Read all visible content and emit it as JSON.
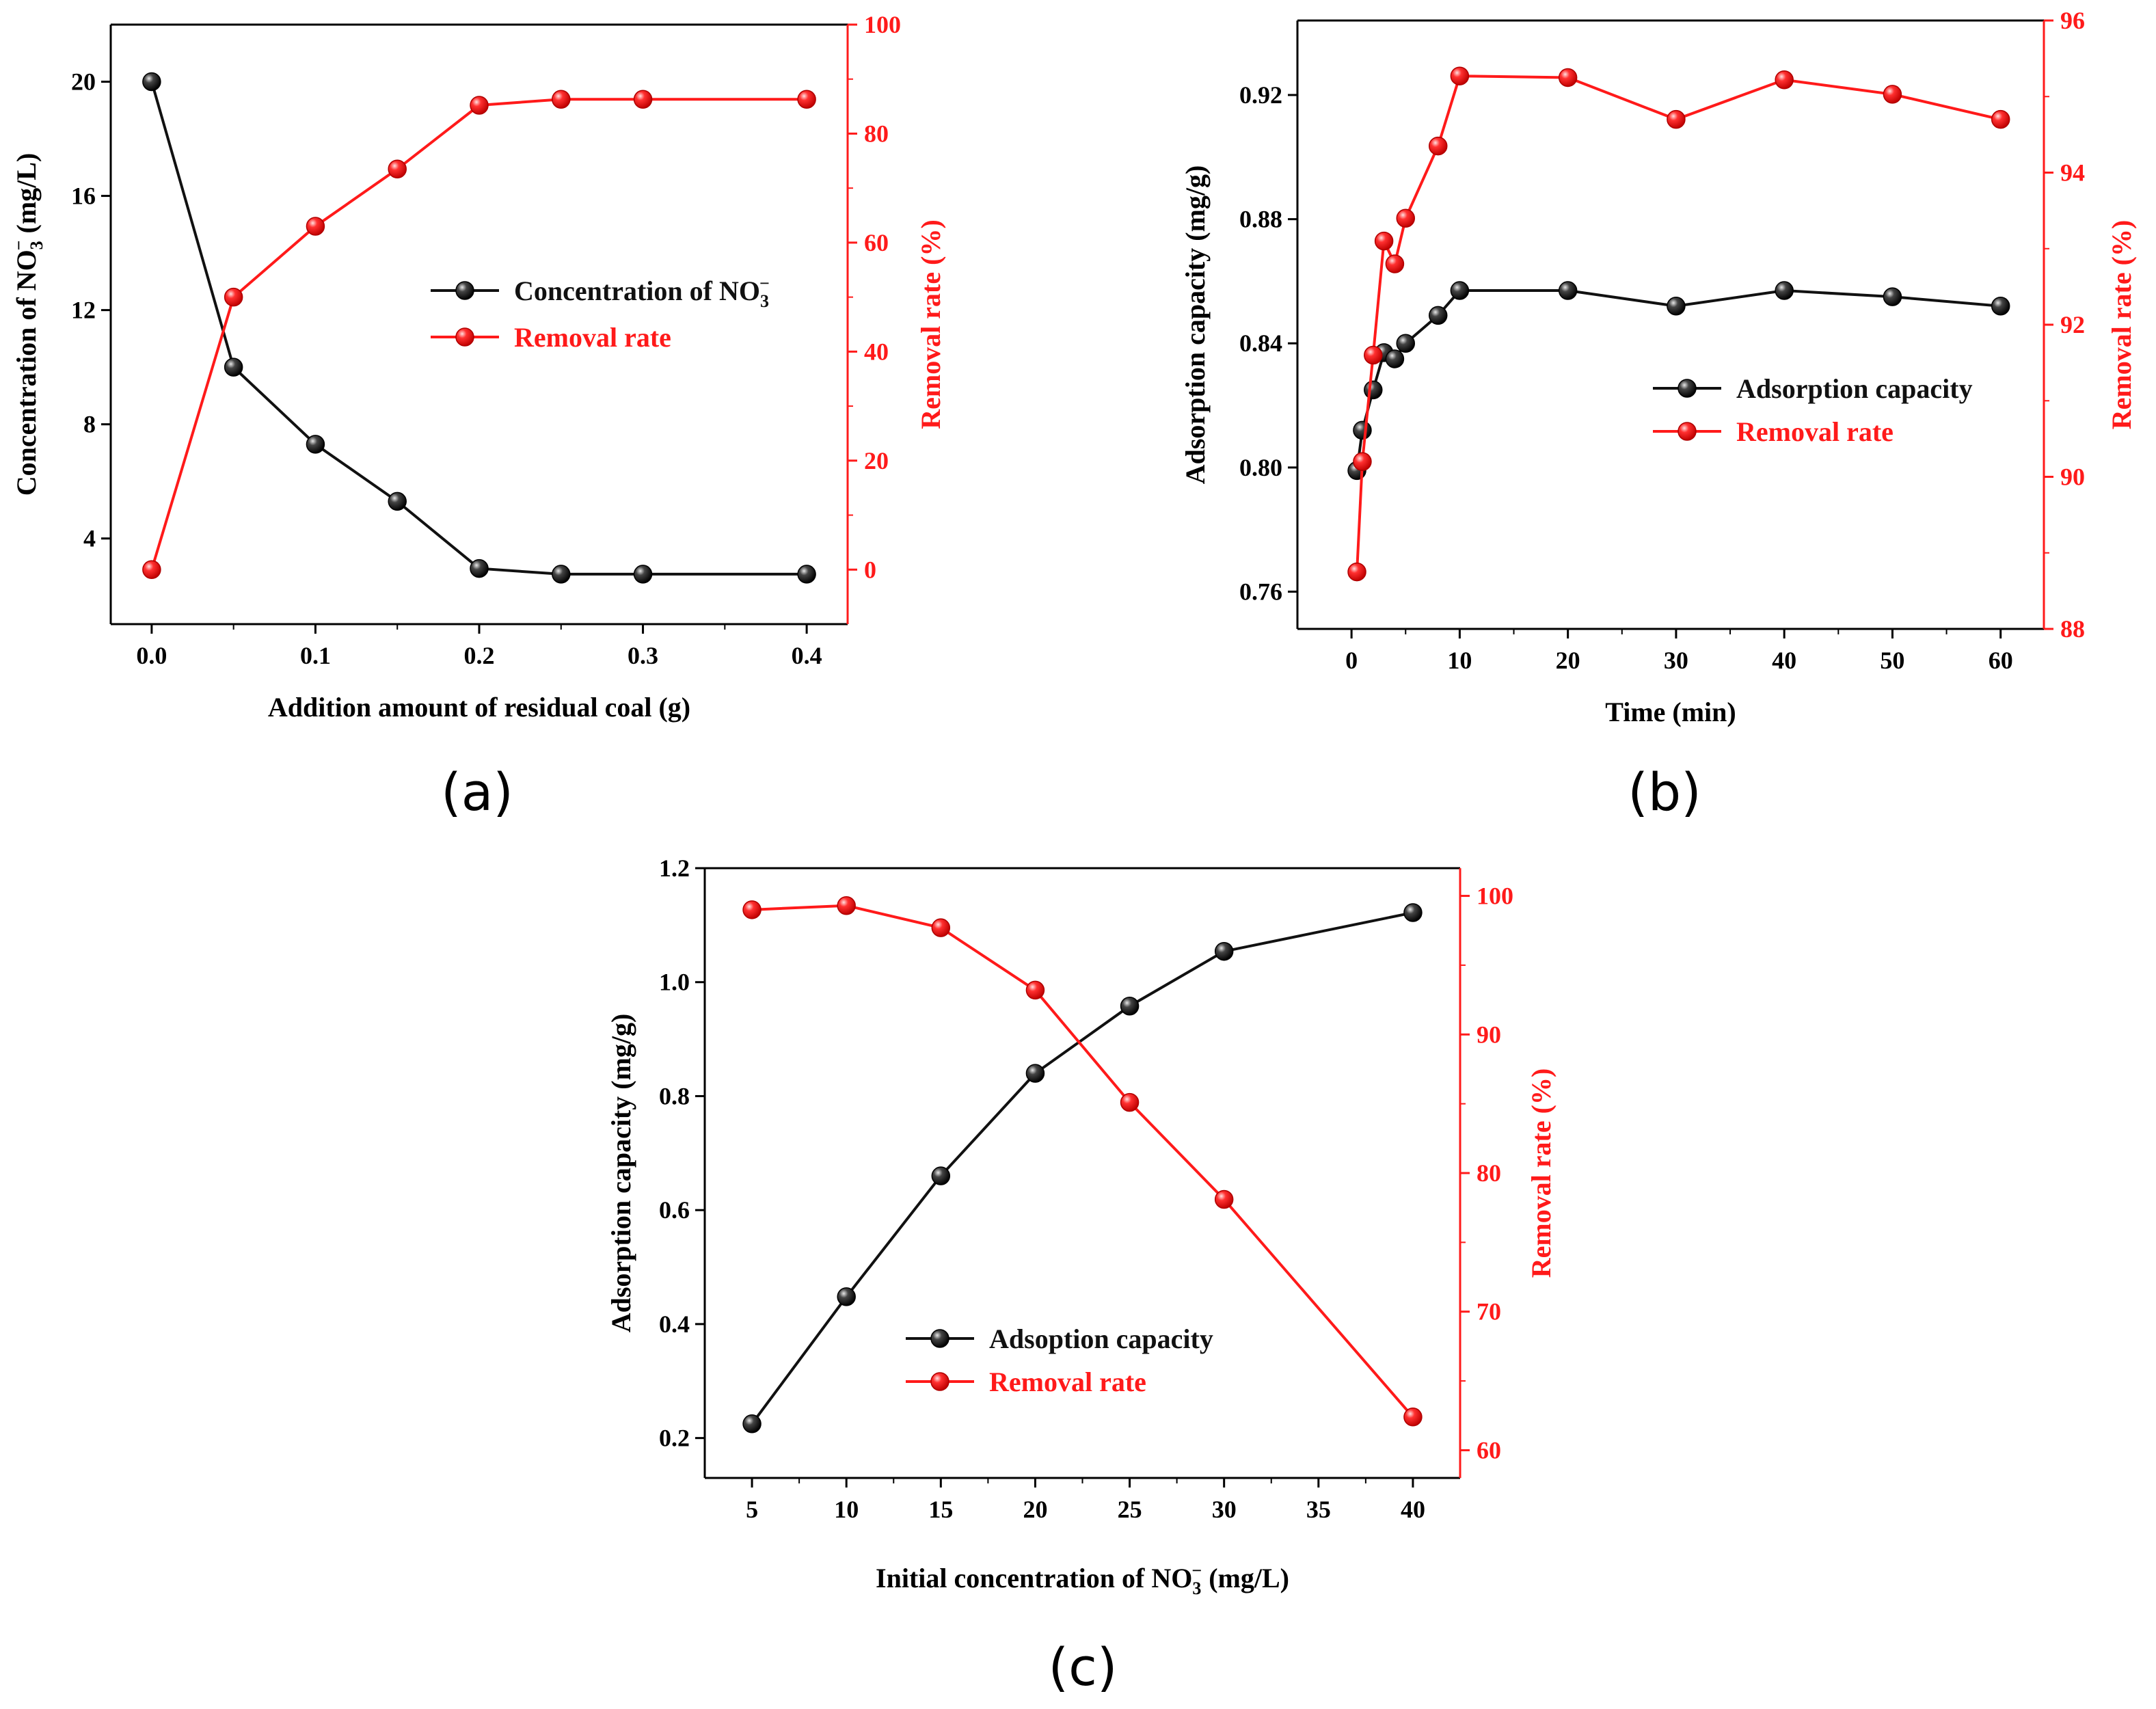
{
  "colors": {
    "black_series": "#111111",
    "red_series": "#ff1a1a",
    "axis": "#000000"
  },
  "chart_data": [
    {
      "id": "a",
      "type": "line",
      "panel_label": "(a)",
      "xlabel": "Addition amount of residual coal (g)",
      "ylabel_left": {
        "main": "Concentration of NO",
        "sub": "3",
        "sup": "−",
        "tail": " (mg/L)"
      },
      "ylabel_right": "Removal rate (%)",
      "x": [
        0.0,
        0.05,
        0.1,
        0.15,
        0.2,
        0.25,
        0.3,
        0.4
      ],
      "xlim": [
        -0.025,
        0.425
      ],
      "xticks": [
        0.0,
        0.1,
        0.2,
        0.3,
        0.4
      ],
      "xtick_labels": [
        "0.0",
        "0.1",
        "0.2",
        "0.3",
        "0.4"
      ],
      "ylim_left": [
        1,
        22
      ],
      "yticks_left": [
        4,
        8,
        12,
        16,
        20
      ],
      "ytick_labels_left": [
        "4",
        "8",
        "12",
        "16",
        "20"
      ],
      "ylim_right": [
        -10,
        100
      ],
      "yticks_right": [
        0,
        20,
        40,
        60,
        80,
        100
      ],
      "ytick_labels_right": [
        "0",
        "20",
        "40",
        "60",
        "80",
        "100"
      ],
      "series": [
        {
          "name": "Concentration of NO",
          "legend_sub": "3",
          "legend_sup": "−",
          "axis": "left",
          "color": "#111111",
          "values": [
            20.0,
            10.0,
            7.3,
            5.3,
            2.95,
            2.75,
            2.75,
            2.75
          ]
        },
        {
          "name": "Removal rate",
          "axis": "right",
          "color": "#ff1a1a",
          "values": [
            0,
            50,
            63,
            73.5,
            85.2,
            86.3,
            86.3,
            86.3
          ]
        }
      ]
    },
    {
      "id": "b",
      "type": "line",
      "panel_label": "(b)",
      "xlabel": "Time (min)",
      "ylabel_left": {
        "main": "Adsorption capacity (mg/g)",
        "sub": "",
        "sup": "",
        "tail": ""
      },
      "ylabel_right": "Removal rate (%)",
      "x": [
        0.5,
        1,
        2,
        3,
        4,
        5,
        8,
        10,
        20,
        30,
        40,
        50,
        60
      ],
      "xlim": [
        -5,
        64
      ],
      "xticks": [
        0,
        10,
        20,
        30,
        40,
        50,
        60
      ],
      "xtick_labels": [
        "0",
        "10",
        "20",
        "30",
        "40",
        "50",
        "60"
      ],
      "ylim_left": [
        0.748,
        0.944
      ],
      "yticks_left": [
        0.76,
        0.8,
        0.84,
        0.88,
        0.92
      ],
      "ytick_labels_left": [
        "0.76",
        "0.80",
        "0.84",
        "0.88",
        "0.92"
      ],
      "ylim_right": [
        88,
        96
      ],
      "yticks_right": [
        88,
        90,
        92,
        94,
        96
      ],
      "ytick_labels_right": [
        "88",
        "90",
        "92",
        "94",
        "96"
      ],
      "series": [
        {
          "name": "Adsorption capacity",
          "axis": "left",
          "color": "#111111",
          "values": [
            0.799,
            0.812,
            0.825,
            0.837,
            0.835,
            0.84,
            0.849,
            0.857,
            0.857,
            0.852,
            0.857,
            0.855,
            0.852
          ]
        },
        {
          "name": "Removal rate",
          "axis": "right",
          "color": "#ff1a1a",
          "values": [
            88.75,
            90.2,
            91.6,
            93.1,
            92.8,
            93.4,
            94.35,
            95.27,
            95.25,
            94.7,
            95.22,
            95.03,
            94.7
          ]
        }
      ]
    },
    {
      "id": "c",
      "type": "line",
      "panel_label": "(c)",
      "xlabel": {
        "main": "Initial concentration of NO",
        "sub": "3",
        "sup": "−",
        "tail": " (mg/L)"
      },
      "ylabel_left": {
        "main": "Adsorption capacity (mg/g)",
        "sub": "",
        "sup": "",
        "tail": ""
      },
      "ylabel_right": "Removal rate (%)",
      "x": [
        5,
        10,
        15,
        20,
        25,
        30,
        40
      ],
      "xlim": [
        2.5,
        42.5
      ],
      "xticks": [
        5,
        10,
        15,
        20,
        25,
        30,
        35,
        40
      ],
      "xtick_labels": [
        "5",
        "10",
        "15",
        "20",
        "25",
        "30",
        "35",
        "40"
      ],
      "ylim_left": [
        0.13,
        1.2
      ],
      "yticks_left": [
        0.2,
        0.4,
        0.6,
        0.8,
        1.0,
        1.2
      ],
      "ytick_labels_left": [
        "0.2",
        "0.4",
        "0.6",
        "0.8",
        "1.0",
        "1.2"
      ],
      "ylim_right": [
        58,
        102
      ],
      "yticks_right": [
        60,
        70,
        80,
        90,
        100
      ],
      "ytick_labels_right": [
        "60",
        "70",
        "80",
        "90",
        "100"
      ],
      "series": [
        {
          "name": "Adsoption capacity",
          "axis": "left",
          "color": "#111111",
          "values": [
            0.225,
            0.448,
            0.66,
            0.84,
            0.958,
            1.054,
            1.122
          ]
        },
        {
          "name": "Removal rate",
          "axis": "right",
          "color": "#ff1a1a",
          "values": [
            99.0,
            99.3,
            97.7,
            93.2,
            85.1,
            78.1,
            62.4
          ]
        }
      ]
    }
  ]
}
